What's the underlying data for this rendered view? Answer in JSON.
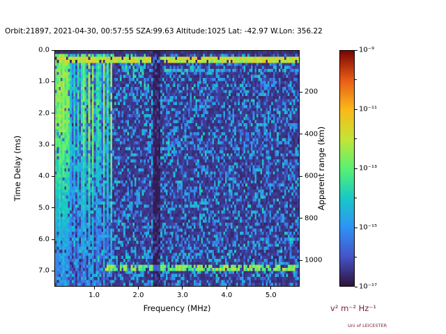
{
  "header": {
    "title": "Orbit:21897, 2021-04-30, 00:57:55 SZA:99.63 Altitude:1025 Lat: -42.97 W.Lon: 356.22"
  },
  "chart_data": {
    "type": "heatmap",
    "title": "Orbit:21897, 2021-04-30, 00:57:55 SZA:99.63 Altitude:1025 Lat: -42.97 W.Lon: 356.22",
    "xlabel": "Frequency (MHz)",
    "ylabel": "Time Delay (ms)",
    "ylabel_right": "Apparent range (km)",
    "xlim": [
      0.1,
      5.65
    ],
    "ylim": [
      0,
      7.5
    ],
    "y_axis_points_downward": true,
    "x_ticks": [
      1.0,
      2.0,
      3.0,
      4.0,
      5.0
    ],
    "x_tick_labels": [
      "1.0",
      "2.0",
      "3.0",
      "4.0",
      "5.0"
    ],
    "y_ticks": [
      0,
      1,
      2,
      3,
      4,
      5,
      6,
      7
    ],
    "y_tick_labels": [
      "0.0",
      "1.0",
      "2.0",
      "3.0",
      "4.0",
      "5.0",
      "6.0",
      "7.0"
    ],
    "y2_ticks_km": [
      200,
      400,
      600,
      800,
      1000
    ],
    "y2_km_per_ms": 150,
    "colorbar": {
      "tick_labels": [
        "10⁻⁹",
        "10⁻¹¹",
        "10⁻¹³",
        "10⁻¹⁵",
        "10⁻¹⁷"
      ],
      "label": "v² m⁻² Hz⁻¹",
      "label_color": "#7a1c2e",
      "colormap": "turbo",
      "colormap_stops": [
        [
          0.0,
          "#30123b"
        ],
        [
          0.125,
          "#4454c8"
        ],
        [
          0.25,
          "#2e93f5"
        ],
        [
          0.375,
          "#18c9c6"
        ],
        [
          0.5,
          "#58f271"
        ],
        [
          0.625,
          "#c4e437"
        ],
        [
          0.75,
          "#fbb919"
        ],
        [
          0.875,
          "#e85c16"
        ],
        [
          1.0,
          "#7a0403"
        ]
      ]
    },
    "heatmap": {
      "nx": 132,
      "ny": 78,
      "seed": 21897,
      "features": {
        "background_level": 0.04,
        "speckle_probability": 0.42,
        "speckle_max": 0.3,
        "ionosphere_stripes": {
          "freq_max_mhz": 1.42,
          "base_intensity": 0.5
        },
        "surface_line_top": {
          "delay_ms": 0.25,
          "intensity": 0.62
        },
        "echo_line_bottom": {
          "delay_ms": 6.93,
          "freq_min_mhz": 1.25,
          "intensity": 0.5
        },
        "dark_band": {
          "freq_mhz_min": 2.32,
          "freq_mhz_max": 2.5
        },
        "cusp": {
          "freq_min_mhz": 1.42,
          "freq_max_mhz": 2.15
        }
      }
    }
  },
  "footer": {
    "credit": "Uni of LEICESTER"
  }
}
